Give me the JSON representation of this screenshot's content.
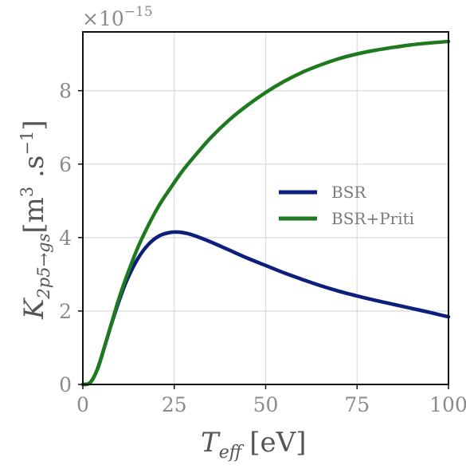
{
  "chart_data": {
    "type": "line",
    "title": "",
    "xlabel": {
      "main": "T",
      "sub": "eff",
      "unit": "[eV]"
    },
    "ylabel": {
      "main": "K",
      "sub": "2p5→gs",
      "unit_open": "[m",
      "unit_sup1": "3",
      "unit_mid": " .s",
      "unit_sup2": "−1",
      "unit_close": "]"
    },
    "y_multiplier": {
      "base": "×10",
      "exponent": "−15"
    },
    "xlim": [
      0,
      100
    ],
    "ylim": [
      0,
      9.6
    ],
    "xticks": [
      0,
      25,
      50,
      75,
      100
    ],
    "xtick_labels": [
      "0",
      "25",
      "50",
      "75",
      "100"
    ],
    "yticks": [
      0,
      2,
      4,
      6,
      8
    ],
    "ytick_labels": [
      "0",
      "2",
      "4",
      "6",
      "8"
    ],
    "grid": true,
    "legend_position": "center-right",
    "series": [
      {
        "name": "BSR",
        "color": "#0d1f7a",
        "x": [
          0,
          2,
          4,
          6,
          8,
          10,
          12,
          15,
          18,
          21,
          24,
          27,
          30,
          35,
          40,
          45,
          50,
          55,
          60,
          65,
          70,
          75,
          80,
          85,
          90,
          95,
          100
        ],
        "y": [
          0,
          0.05,
          0.42,
          1.05,
          1.7,
          2.3,
          2.83,
          3.42,
          3.82,
          4.05,
          4.14,
          4.14,
          4.07,
          3.88,
          3.66,
          3.44,
          3.24,
          3.04,
          2.86,
          2.69,
          2.54,
          2.41,
          2.29,
          2.18,
          2.07,
          1.96,
          1.84
        ]
      },
      {
        "name": "BSR+Priti",
        "color": "#1f7a1f",
        "x": [
          0,
          2,
          4,
          6,
          8,
          10,
          12,
          15,
          18,
          21,
          24,
          27,
          30,
          35,
          40,
          45,
          50,
          55,
          60,
          65,
          70,
          75,
          80,
          85,
          90,
          95,
          100
        ],
        "y": [
          0,
          0.05,
          0.42,
          1.05,
          1.72,
          2.38,
          2.95,
          3.72,
          4.35,
          4.9,
          5.35,
          5.78,
          6.15,
          6.72,
          7.2,
          7.6,
          7.95,
          8.25,
          8.5,
          8.7,
          8.87,
          9.0,
          9.1,
          9.18,
          9.25,
          9.3,
          9.34
        ]
      }
    ]
  }
}
